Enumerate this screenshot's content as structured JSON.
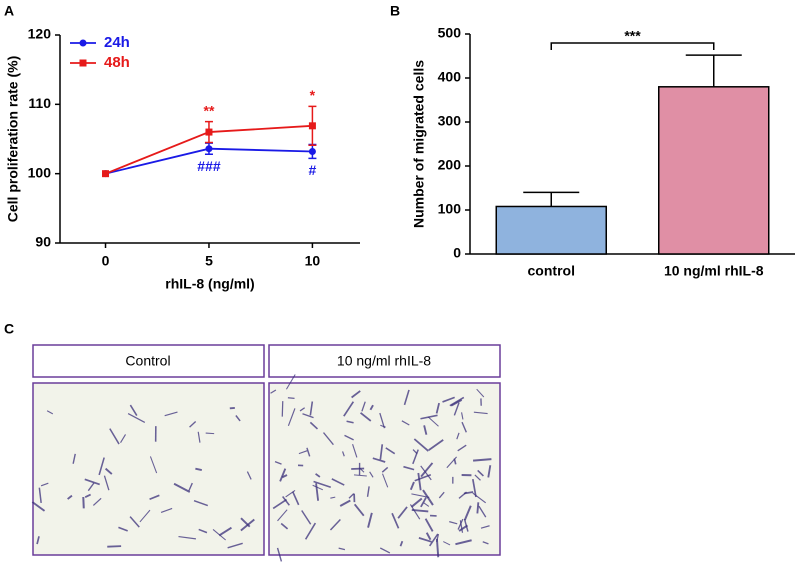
{
  "chart_data": [
    {
      "type": "line",
      "panel": "A",
      "xlabel": "rhIL-8 (ng/ml)",
      "ylabel": "Cell proliferation rate (%)",
      "x": [
        0,
        5,
        10
      ],
      "xlim": [
        -2.2,
        12.3
      ],
      "xticks": [
        0,
        5,
        10
      ],
      "ylim": [
        90,
        120
      ],
      "yticks": [
        90,
        100,
        110,
        120
      ],
      "legend": "upper left",
      "series": [
        {
          "name": "24h",
          "color": "#1a1ae6",
          "marker": "circle",
          "values": [
            100,
            103.6,
            103.2
          ],
          "errors": [
            0,
            0.8,
            1.0
          ],
          "annotations": [
            null,
            "###",
            "#"
          ]
        },
        {
          "name": "48h",
          "color": "#e61a1a",
          "marker": "square",
          "values": [
            100,
            106,
            106.9
          ],
          "errors": [
            0,
            1.5,
            2.8
          ],
          "annotations": [
            null,
            "**",
            "*"
          ]
        }
      ]
    },
    {
      "type": "bar",
      "panel": "B",
      "ylabel": "Number of migrated cells",
      "categories": [
        "control",
        "10 ng/ml rhIL-8"
      ],
      "values": [
        108,
        380
      ],
      "errors": [
        32,
        72
      ],
      "colors": [
        "#8fb3de",
        "#e08fa5"
      ],
      "ylim": [
        0,
        500
      ],
      "yticks": [
        0,
        100,
        200,
        300,
        400,
        500
      ],
      "significance": "***"
    }
  ],
  "panel_c": {
    "label": "C",
    "headers": [
      "Control",
      "10 ng/ml rhIL-8"
    ]
  }
}
